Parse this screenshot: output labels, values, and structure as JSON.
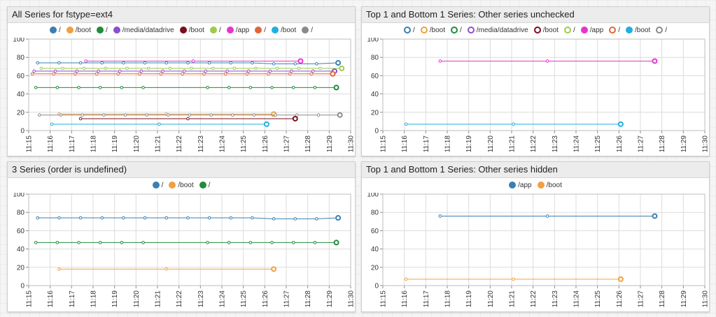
{
  "chart_data": [
    {
      "type": "line",
      "title": "All Series for fstype=ext4",
      "x_ticks": [
        "11:15",
        "11:16",
        "11:17",
        "11:18",
        "11:19",
        "11:20",
        "11:21",
        "11:22",
        "11:23",
        "11:24",
        "11:25",
        "11:26",
        "11:27",
        "11:28",
        "11:29",
        "11:30"
      ],
      "ylim": [
        0,
        100
      ],
      "y_ticks": [
        0,
        20,
        40,
        60,
        80,
        100
      ],
      "grid": true,
      "legend_position": "top-center",
      "series": [
        {
          "name": "/",
          "color": "#3a7fb2",
          "hidden": false,
          "x": [
            "11:15:25",
            "11:16:25",
            "11:17:25",
            "11:18:25",
            "11:19:25",
            "11:20:25",
            "11:21:25",
            "11:22:25",
            "11:23:25",
            "11:24:25",
            "11:25:25",
            "11:26:25",
            "11:27:25",
            "11:28:25",
            "11:29:25"
          ],
          "y": [
            74,
            74,
            74,
            74,
            74,
            74,
            74,
            74,
            74,
            74,
            74,
            73,
            73,
            73,
            74
          ]
        },
        {
          "name": "/boot",
          "color": "#f0a040",
          "hidden": false,
          "x": [
            "11:16:25",
            "11:21:25",
            "11:26:25"
          ],
          "y": [
            18,
            18,
            18
          ]
        },
        {
          "name": "/",
          "color": "#1f8c3a",
          "hidden": false,
          "x": [
            "11:15:20",
            "11:16:20",
            "11:17:20",
            "11:18:20",
            "11:19:20",
            "11:20:20",
            "11:23:20",
            "11:24:20",
            "11:25:20",
            "11:26:20",
            "11:27:20",
            "11:28:20",
            "11:29:20"
          ],
          "y": [
            47,
            47,
            47,
            47,
            47,
            47,
            47,
            47,
            47,
            47,
            47,
            47,
            47
          ]
        },
        {
          "name": "/media/datadrive",
          "color": "#8a4fd0",
          "hidden": false,
          "x": [
            "11:15:15",
            "11:16:15",
            "11:17:15",
            "11:18:15",
            "11:19:15",
            "11:20:15",
            "11:21:15",
            "11:22:15",
            "11:23:15",
            "11:24:15",
            "11:25:15",
            "11:26:15",
            "11:27:15",
            "11:28:15",
            "11:29:15"
          ],
          "y": [
            65,
            65,
            65,
            65,
            65,
            65,
            65,
            65,
            65,
            65,
            65,
            65,
            65,
            65,
            65
          ]
        },
        {
          "name": "/boot",
          "color": "#7a0e1c",
          "hidden": false,
          "x": [
            "11:17:25",
            "11:22:25",
            "11:27:25"
          ],
          "y": [
            13,
            13,
            13
          ]
        },
        {
          "name": "/",
          "color": "#9ccc4a",
          "hidden": false,
          "x": [
            "11:15:35",
            "11:16:35",
            "11:17:35",
            "11:18:35",
            "11:19:35",
            "11:20:35",
            "11:21:35",
            "11:22:35",
            "11:23:35",
            "11:24:35",
            "11:25:35",
            "11:26:35",
            "11:27:35",
            "11:28:35",
            "11:29:35"
          ],
          "y": [
            68,
            68,
            68,
            68,
            68,
            68,
            68,
            68,
            68,
            68,
            68,
            68,
            68,
            68,
            68
          ]
        },
        {
          "name": "/app",
          "color": "#e832d0",
          "hidden": false,
          "x": [
            "11:17:40",
            "11:22:40",
            "11:27:40"
          ],
          "y": [
            76,
            76,
            76
          ]
        },
        {
          "name": "/",
          "color": "#e0663a",
          "hidden": false,
          "x": [
            "11:15:10",
            "11:16:10",
            "11:17:10",
            "11:18:10",
            "11:19:10",
            "11:20:10",
            "11:21:10",
            "11:22:10",
            "11:23:10",
            "11:24:10",
            "11:25:10",
            "11:26:10",
            "11:27:10",
            "11:28:10",
            "11:29:10"
          ],
          "y": [
            62,
            62,
            62,
            62,
            62,
            62,
            62,
            62,
            62,
            62,
            62,
            62,
            62,
            62,
            62
          ]
        },
        {
          "name": "/boot",
          "color": "#1fb0e0",
          "hidden": false,
          "x": [
            "11:16:05",
            "11:21:05",
            "11:26:05"
          ],
          "y": [
            7,
            7,
            7
          ]
        },
        {
          "name": "/",
          "color": "#8a8a8a",
          "hidden": false,
          "x": [
            "11:15:30",
            "11:16:30",
            "11:17:30",
            "11:18:30",
            "11:19:30",
            "11:20:30",
            "11:21:30",
            "11:22:30",
            "11:23:30",
            "11:24:30",
            "11:25:30",
            "11:26:30",
            "11:27:30",
            "11:28:30",
            "11:29:30"
          ],
          "y": [
            17,
            17,
            17,
            17,
            17,
            17,
            17,
            17,
            17,
            17,
            17,
            17,
            17,
            17,
            17
          ]
        }
      ]
    },
    {
      "type": "line",
      "title": "Top 1 and Bottom 1 Series: Other series unchecked",
      "x_ticks": [
        "11:15",
        "11:16",
        "11:17",
        "11:18",
        "11:19",
        "11:20",
        "11:21",
        "11:22",
        "11:23",
        "11:24",
        "11:25",
        "11:26",
        "11:27",
        "11:28",
        "11:29",
        "11:30"
      ],
      "ylim": [
        0,
        100
      ],
      "y_ticks": [
        0,
        20,
        40,
        60,
        80,
        100
      ],
      "grid": true,
      "legend_position": "top-center",
      "series": [
        {
          "name": "/",
          "color": "#3a7fb2",
          "hidden": true,
          "x": [],
          "y": []
        },
        {
          "name": "/boot",
          "color": "#f0a040",
          "hidden": true,
          "x": [],
          "y": []
        },
        {
          "name": "/",
          "color": "#1f8c3a",
          "hidden": true,
          "x": [],
          "y": []
        },
        {
          "name": "/media/datadrive",
          "color": "#8a4fd0",
          "hidden": true,
          "x": [],
          "y": []
        },
        {
          "name": "/boot",
          "color": "#7a0e1c",
          "hidden": true,
          "x": [],
          "y": []
        },
        {
          "name": "/",
          "color": "#9ccc4a",
          "hidden": true,
          "x": [],
          "y": []
        },
        {
          "name": "/app",
          "color": "#e832d0",
          "hidden": false,
          "x": [
            "11:17:40",
            "11:22:40",
            "11:27:40"
          ],
          "y": [
            76,
            76,
            76
          ]
        },
        {
          "name": "/",
          "color": "#e0663a",
          "hidden": true,
          "x": [],
          "y": []
        },
        {
          "name": "/boot",
          "color": "#1fb0e0",
          "hidden": false,
          "x": [
            "11:16:05",
            "11:21:05",
            "11:26:05"
          ],
          "y": [
            7,
            7,
            7
          ]
        },
        {
          "name": "/",
          "color": "#8a8a8a",
          "hidden": true,
          "x": [],
          "y": []
        }
      ]
    },
    {
      "type": "line",
      "title": "3 Series (order is undefined)",
      "x_ticks": [
        "11:15",
        "11:16",
        "11:17",
        "11:18",
        "11:19",
        "11:20",
        "11:21",
        "11:22",
        "11:23",
        "11:24",
        "11:25",
        "11:26",
        "11:27",
        "11:28",
        "11:29",
        "11:30"
      ],
      "ylim": [
        0,
        100
      ],
      "y_ticks": [
        0,
        20,
        40,
        60,
        80,
        100
      ],
      "grid": true,
      "legend_position": "top-center",
      "series": [
        {
          "name": "/",
          "color": "#3a7fb2",
          "hidden": false,
          "x": [
            "11:15:25",
            "11:16:25",
            "11:17:25",
            "11:18:25",
            "11:19:25",
            "11:20:25",
            "11:21:25",
            "11:22:25",
            "11:23:25",
            "11:24:25",
            "11:25:25",
            "11:26:25",
            "11:27:25",
            "11:28:25",
            "11:29:25"
          ],
          "y": [
            74,
            74,
            74,
            74,
            74,
            74,
            74,
            74,
            74,
            74,
            74,
            73,
            73,
            73,
            74
          ]
        },
        {
          "name": "/boot",
          "color": "#f0a040",
          "hidden": false,
          "x": [
            "11:16:25",
            "11:21:25",
            "11:26:25"
          ],
          "y": [
            18,
            18,
            18
          ]
        },
        {
          "name": "/",
          "color": "#1f8c3a",
          "hidden": false,
          "x": [
            "11:15:20",
            "11:16:20",
            "11:17:20",
            "11:18:20",
            "11:19:20",
            "11:20:20",
            "11:23:20",
            "11:24:20",
            "11:25:20",
            "11:26:20",
            "11:27:20",
            "11:28:20",
            "11:29:20"
          ],
          "y": [
            47,
            47,
            47,
            47,
            47,
            47,
            47,
            47,
            47,
            47,
            47,
            47,
            47
          ]
        }
      ]
    },
    {
      "type": "line",
      "title": "Top 1 and Bottom 1 Series: Other series hidden",
      "x_ticks": [
        "11:15",
        "11:16",
        "11:17",
        "11:18",
        "11:19",
        "11:20",
        "11:21",
        "11:22",
        "11:23",
        "11:24",
        "11:25",
        "11:26",
        "11:27",
        "11:28",
        "11:29",
        "11:30"
      ],
      "ylim": [
        0,
        100
      ],
      "y_ticks": [
        0,
        20,
        40,
        60,
        80,
        100
      ],
      "grid": true,
      "legend_position": "top-center",
      "series": [
        {
          "name": "/app",
          "color": "#3a7fb2",
          "hidden": false,
          "x": [
            "11:17:40",
            "11:22:40",
            "11:27:40"
          ],
          "y": [
            76,
            76,
            76
          ]
        },
        {
          "name": "/boot",
          "color": "#f0a040",
          "hidden": false,
          "x": [
            "11:16:05",
            "11:21:05",
            "11:26:05"
          ],
          "y": [
            7,
            7,
            7
          ]
        }
      ]
    }
  ]
}
